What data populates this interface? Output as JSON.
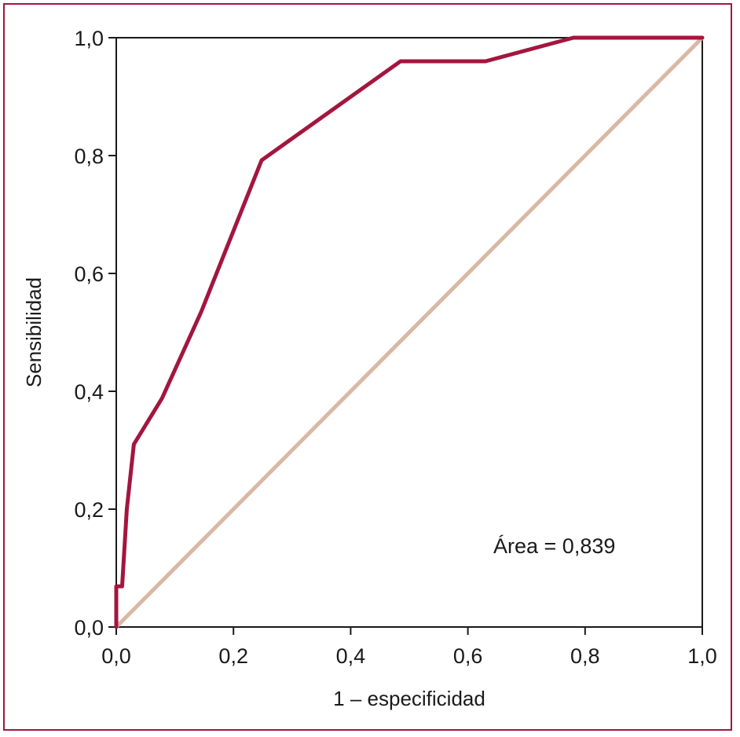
{
  "chart_data": {
    "type": "line",
    "title": "",
    "xlabel": "1 – especificidad",
    "ylabel": "Sensibilidad",
    "xlim": [
      0,
      1
    ],
    "ylim": [
      0,
      1
    ],
    "x_ticks": [
      "0,0",
      "0,2",
      "0,4",
      "0,6",
      "0,8",
      "1,0"
    ],
    "y_ticks": [
      "0,0",
      "0,2",
      "0,4",
      "0,6",
      "0,8",
      "1,0"
    ],
    "grid": false,
    "annotation": "Área = 0,839",
    "colors": {
      "roc": "#a3163e",
      "reference": "#d9b8a4",
      "frame": "#a3163e",
      "axis": "#1a1a1a"
    },
    "series": [
      {
        "x": [
          0.0,
          0.0,
          0.005,
          0.01,
          0.018,
          0.03,
          0.078,
          0.145,
          0.248,
          0.485,
          0.63,
          0.78,
          1.0
        ],
        "y": [
          0.0,
          0.069,
          0.069,
          0.069,
          0.2,
          0.31,
          0.388,
          0.535,
          0.792,
          0.96,
          0.96,
          1.0,
          1.0
        ]
      },
      {
        "x": [
          0.0,
          1.0
        ],
        "y": [
          0.0,
          1.0
        ]
      }
    ]
  }
}
